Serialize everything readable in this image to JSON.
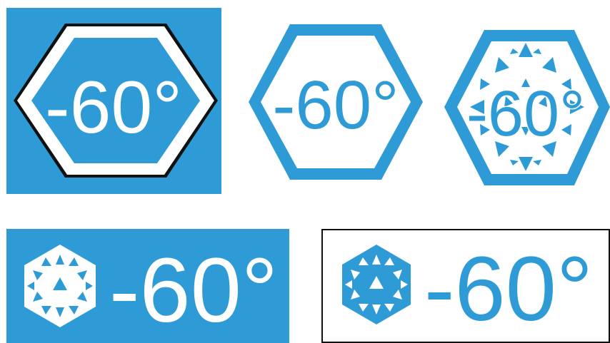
{
  "colors": {
    "blue": "#2E9BD6",
    "white": "#ffffff",
    "black": "#111111"
  },
  "icons": {
    "hexagon": "hexagon-icon",
    "snowflake": "snowflake-icon"
  },
  "badges": [
    {
      "label": "-60°"
    },
    {
      "label": "-60°"
    },
    {
      "label": "-60°"
    },
    {
      "label": "-60°"
    },
    {
      "label": "-60°"
    }
  ]
}
